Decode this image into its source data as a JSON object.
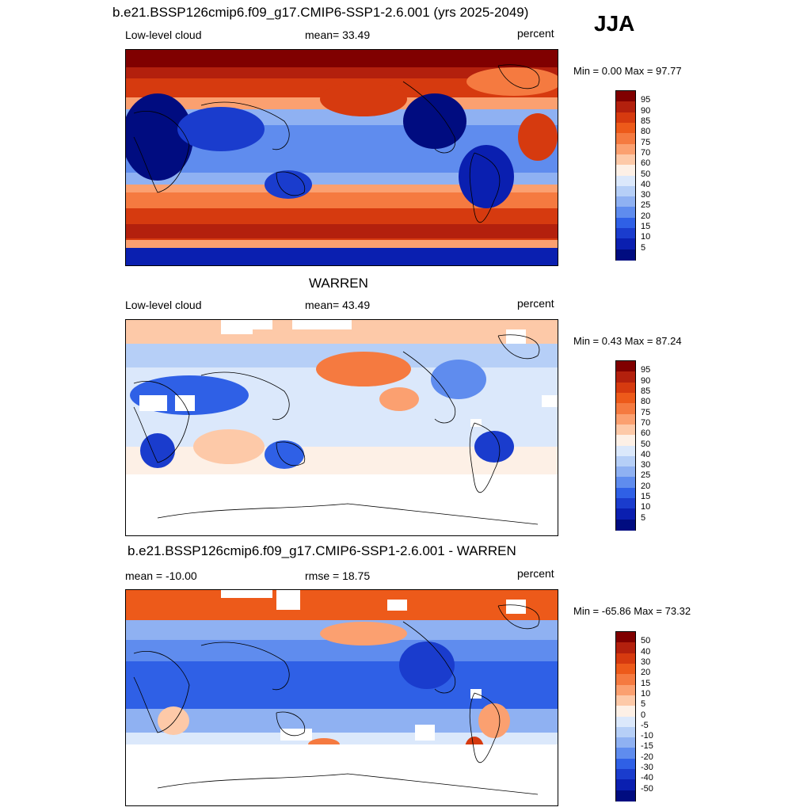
{
  "season": "JJA",
  "panels": [
    {
      "title": "b.e21.BSSP126cmip6.f09_g17.CMIP6-SSP1-2.6.001 (yrs 2025-2049)",
      "left_label": "Low-level cloud",
      "center_label": "mean=  33.49",
      "right_label": "percent",
      "minmax": "Min =   0.00 Max =  97.77",
      "colorbar": {
        "labels": [
          "95",
          "90",
          "85",
          "80",
          "75",
          "70",
          "60",
          "50",
          "40",
          "30",
          "25",
          "20",
          "15",
          "10",
          "5"
        ],
        "colors": [
          "#800000",
          "#b3200d",
          "#d63a0f",
          "#ed5a1a",
          "#f57a40",
          "#fba070",
          "#fdc9a8",
          "#fdf0e6",
          "#dbe8fb",
          "#b6cff7",
          "#8fb1f2",
          "#5f8cee",
          "#2f60e6",
          "#1a3ccd",
          "#0a1fb0",
          "#000c80"
        ]
      }
    },
    {
      "title": "WARREN",
      "left_label": "Low-level cloud",
      "center_label": "mean=  43.49",
      "right_label": "percent",
      "minmax": "Min =   0.43 Max =  87.24",
      "colorbar": {
        "labels": [
          "95",
          "90",
          "85",
          "80",
          "75",
          "70",
          "60",
          "50",
          "40",
          "30",
          "25",
          "20",
          "15",
          "10",
          "5"
        ],
        "colors": [
          "#800000",
          "#b3200d",
          "#d63a0f",
          "#ed5a1a",
          "#f57a40",
          "#fba070",
          "#fdc9a8",
          "#fdf0e6",
          "#dbe8fb",
          "#b6cff7",
          "#8fb1f2",
          "#5f8cee",
          "#2f60e6",
          "#1a3ccd",
          "#0a1fb0",
          "#000c80"
        ]
      }
    },
    {
      "title": "b.e21.BSSP126cmip6.f09_g17.CMIP6-SSP1-2.6.001 - WARREN",
      "left_label": "mean = -10.00",
      "center_label": "rmse =  18.75",
      "right_label": "percent",
      "minmax": "Min = -65.86 Max =  73.32",
      "colorbar": {
        "labels": [
          "50",
          "40",
          "30",
          "20",
          "15",
          "10",
          "5",
          "0",
          "-5",
          "-10",
          "-15",
          "-20",
          "-30",
          "-40",
          "-50"
        ],
        "colors": [
          "#800000",
          "#b3200d",
          "#d63a0f",
          "#ed5a1a",
          "#f57a40",
          "#fba070",
          "#fdc9a8",
          "#fdf0e6",
          "#dbe8fb",
          "#b6cff7",
          "#8fb1f2",
          "#5f8cee",
          "#2f60e6",
          "#1a3ccd",
          "#0a1fb0",
          "#000c80"
        ]
      }
    }
  ]
}
